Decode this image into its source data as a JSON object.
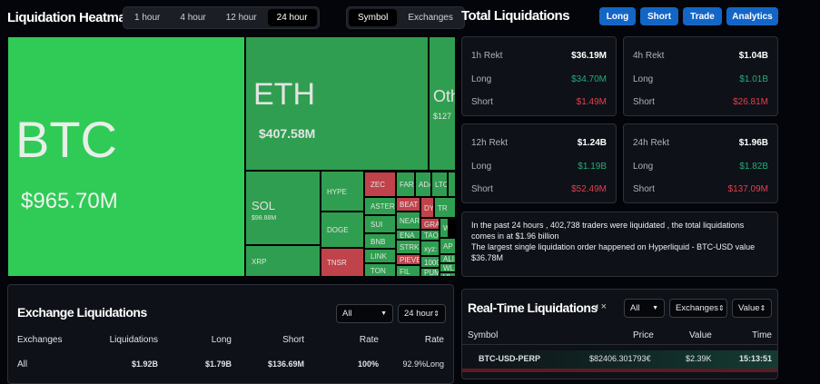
{
  "heatmap": {
    "title": "Liquidation Heatmap",
    "ranges": [
      "1 hour",
      "4 hour",
      "12 hour",
      "24 hour"
    ],
    "active_range": "24 hour",
    "views": [
      "Symbol",
      "Exchanges"
    ],
    "active_view": "Symbol",
    "tiles": [
      {
        "label": "BTC",
        "value": "$965.70M",
        "side": "long"
      },
      {
        "label": "ETH",
        "value": "$407.58M",
        "side": "long"
      },
      {
        "label": "Oth",
        "value": "$127",
        "side": "long"
      },
      {
        "label": "SOL",
        "value": "$98.88M",
        "side": "long"
      },
      {
        "label": "XRP",
        "side": "long"
      },
      {
        "label": "HYPE",
        "side": "long"
      },
      {
        "label": "DOGE",
        "side": "long"
      },
      {
        "label": "TNSR",
        "side": "short"
      },
      {
        "label": "ZEC",
        "side": "short"
      },
      {
        "label": "ASTER",
        "side": "long"
      },
      {
        "label": "SUI",
        "side": "long"
      },
      {
        "label": "BNB",
        "side": "long"
      },
      {
        "label": "LINK",
        "side": "long"
      },
      {
        "label": "TON",
        "side": "long"
      },
      {
        "label": "FAR",
        "side": "long"
      },
      {
        "label": "ADA",
        "side": "long"
      },
      {
        "label": "LTC",
        "side": "long"
      },
      {
        "label": "",
        "side": "long"
      },
      {
        "label": "BEAT",
        "side": "short"
      },
      {
        "label": "DY",
        "side": "short"
      },
      {
        "label": "TR",
        "side": "long"
      },
      {
        "label": "NEAR",
        "side": "long"
      },
      {
        "label": "GRA",
        "side": "short"
      },
      {
        "label": "ENA",
        "side": "long"
      },
      {
        "label": "TAO",
        "side": "long"
      },
      {
        "label": "W",
        "side": "long"
      },
      {
        "label": "STRK",
        "side": "long"
      },
      {
        "label": "xyz:",
        "side": "long"
      },
      {
        "label": "AP",
        "side": "long"
      },
      {
        "label": "PIEVE",
        "side": "short"
      },
      {
        "label": "1000",
        "side": "long"
      },
      {
        "label": "ALI",
        "side": "long"
      },
      {
        "label": "FIL",
        "side": "long"
      },
      {
        "label": "PUMP",
        "side": "long"
      },
      {
        "label": "WL",
        "side": "long"
      },
      {
        "label": "VI",
        "side": "long"
      }
    ]
  },
  "colors": {
    "btc": "#2fcb56",
    "long": "#2f9e50",
    "short": "#c0434b",
    "accent": "#1466c6"
  },
  "total": {
    "title": "Total Liquidations",
    "buttons": [
      "Long",
      "Short",
      "Trade",
      "Analytics"
    ],
    "cards": [
      {
        "label": "1h Rekt",
        "total": "$36.19M",
        "long_label": "Long",
        "long": "$34.70M",
        "short_label": "Short",
        "short": "$1.49M"
      },
      {
        "label": "4h Rekt",
        "total": "$1.04B",
        "long_label": "Long",
        "long": "$1.01B",
        "short_label": "Short",
        "short": "$26.81M"
      },
      {
        "label": "12h Rekt",
        "total": "$1.24B",
        "long_label": "Long",
        "long": "$1.19B",
        "short_label": "Short",
        "short": "$52.49M"
      },
      {
        "label": "24h Rekt",
        "total": "$1.96B",
        "long_label": "Long",
        "long": "$1.82B",
        "short_label": "Short",
        "short": "$137.09M"
      }
    ],
    "summary1": "In the past 24 hours , 402,738 traders were liquidated , the total liquidations comes in at $1.96 billion",
    "summary2": "The largest single liquidation order happened on Hyperliquid - BTC-USD value $36.78M"
  },
  "exchange": {
    "title": "Exchange Liquidations",
    "filter": "All",
    "range": "24 hour",
    "columns": [
      "Exchanges",
      "Liquidations",
      "Long",
      "Short",
      "Rate",
      "Rate"
    ],
    "rows": [
      {
        "exchange": "All",
        "liquidations": "$1.92B",
        "long": "$1.79B",
        "short": "$136.69M",
        "rate": "100%",
        "rate2": "92.9%Long"
      }
    ]
  },
  "realtime": {
    "title": "Real-Time Liquidations",
    "filter": "All",
    "exchanges": "Exchanges",
    "value": "Value",
    "columns": [
      "Symbol",
      "Price",
      "Value",
      "Time"
    ],
    "rows": [
      {
        "symbol": "BTC-USD-PERP",
        "price": "$82406.301793€",
        "value": "$2.39K",
        "time": "15:13:51"
      }
    ]
  }
}
